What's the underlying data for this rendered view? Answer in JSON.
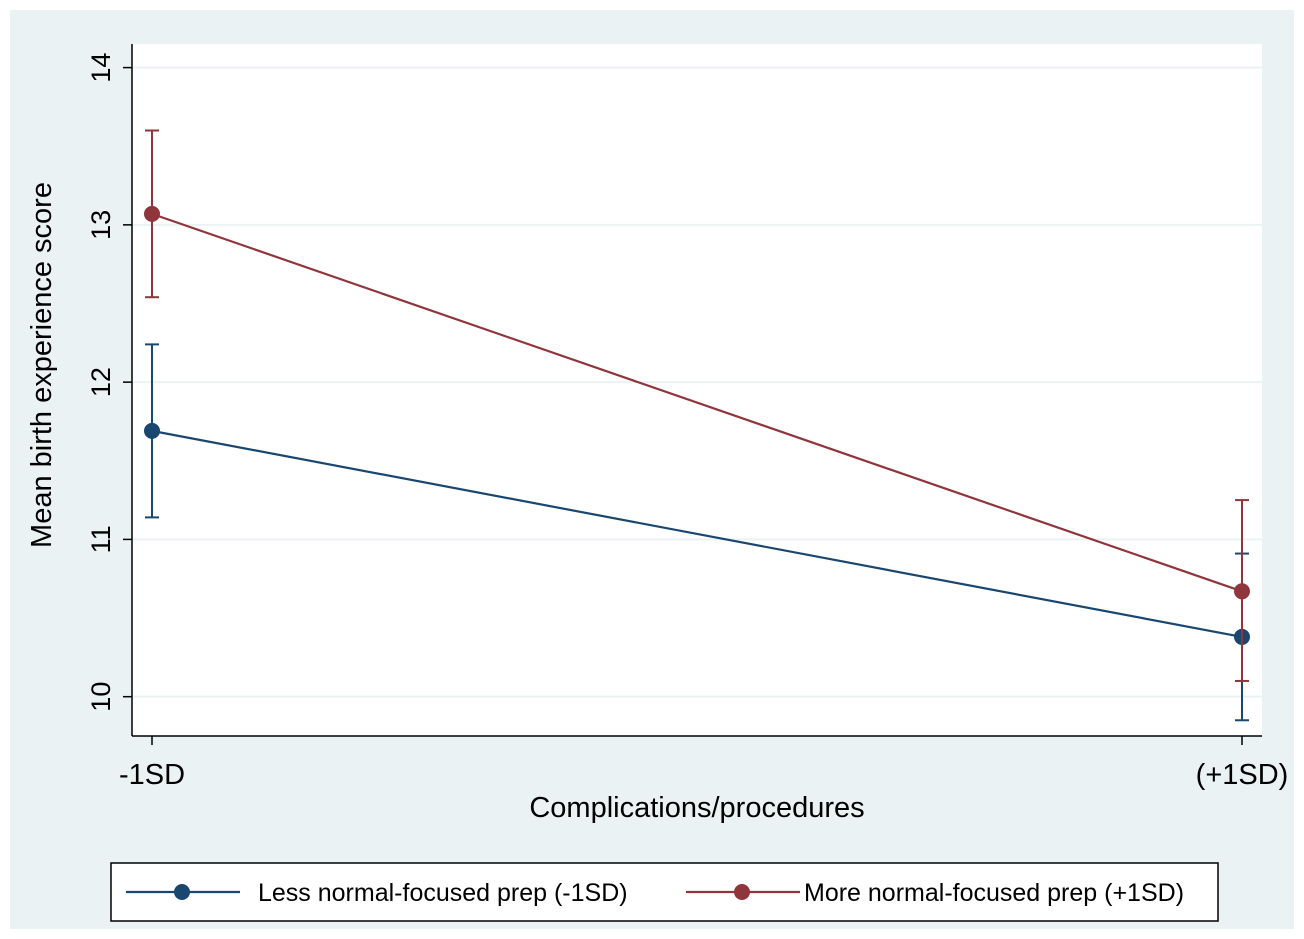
{
  "chart_data": {
    "type": "line",
    "title": "",
    "xlabel": "Complications/procedures",
    "ylabel": "Mean birth experience score",
    "categories": [
      "-1SD",
      "(+1SD)"
    ],
    "ylim": [
      9.75,
      14.15
    ],
    "yticks": [
      10,
      11,
      12,
      13,
      14
    ],
    "grid": true,
    "legend_position": "bottom",
    "series": [
      {
        "name": "Less normal-focused prep (-1SD)",
        "color": "#1a476f",
        "values": [
          11.69,
          10.38
        ],
        "ci_low": [
          11.14,
          9.85
        ],
        "ci_high": [
          12.24,
          10.91
        ]
      },
      {
        "name": "More normal-focused prep (+1SD)",
        "color": "#90353b",
        "values": [
          13.07,
          10.67
        ],
        "ci_low": [
          12.54,
          10.1
        ],
        "ci_high": [
          13.6,
          11.25
        ]
      }
    ]
  }
}
